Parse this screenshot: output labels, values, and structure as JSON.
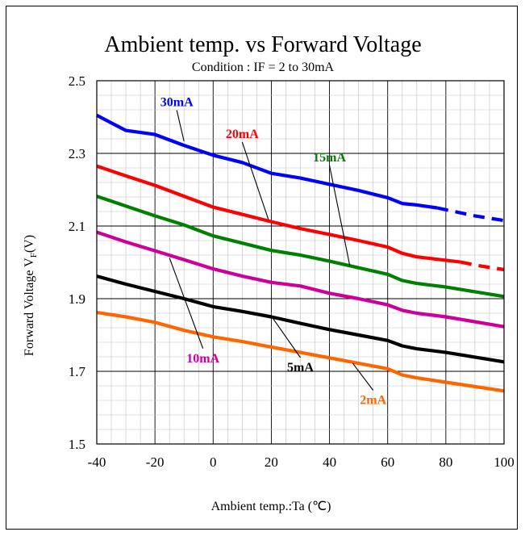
{
  "chart_data": {
    "type": "line",
    "title": "Ambient temp. vs  Forward Voltage",
    "subtitle": "Condition : IF = 2 to 30mA",
    "xlabel": "Ambient temp.:Ta (℃)",
    "ylabel_main": "Forward  Voltage  V",
    "ylabel_sub": "F",
    "ylabel_unit": "(V)",
    "xlim": [
      -40,
      100
    ],
    "ylim": [
      1.5,
      2.5
    ],
    "x_ticks": [
      -40,
      -20,
      0,
      20,
      40,
      60,
      80,
      100
    ],
    "x_tick_labels": [
      "-40",
      "-20",
      "0",
      "20",
      "40",
      "60",
      "80",
      "100"
    ],
    "y_ticks": [
      1.5,
      1.7,
      1.9,
      2.1,
      2.3,
      2.5
    ],
    "y_tick_labels": [
      "1.5",
      "1.7",
      "1.9",
      "2.1",
      "2.3",
      "2.5"
    ],
    "grid": true,
    "series": [
      {
        "name": "30mA",
        "color": "#0000ff",
        "solid": [
          [
            -40,
            2.405
          ],
          [
            -30,
            2.363
          ],
          [
            -20,
            2.352
          ],
          [
            -10,
            2.322
          ],
          [
            0,
            2.295
          ],
          [
            10,
            2.275
          ],
          [
            20,
            2.245
          ],
          [
            30,
            2.232
          ],
          [
            40,
            2.215
          ],
          [
            50,
            2.198
          ],
          [
            60,
            2.178
          ],
          [
            65,
            2.162
          ],
          [
            70,
            2.158
          ],
          [
            77,
            2.15
          ]
        ],
        "dashed": [
          [
            77,
            2.15
          ],
          [
            90,
            2.128
          ],
          [
            100,
            2.115
          ]
        ],
        "label_anchor": [
          -10,
          2.333
        ],
        "label_text_pos": [
          -12.5,
          2.43
        ]
      },
      {
        "name": "20mA",
        "color": "#ff0000",
        "solid": [
          [
            -40,
            2.265
          ],
          [
            -30,
            2.238
          ],
          [
            -20,
            2.212
          ],
          [
            -10,
            2.182
          ],
          [
            0,
            2.152
          ],
          [
            10,
            2.132
          ],
          [
            20,
            2.112
          ],
          [
            30,
            2.093
          ],
          [
            40,
            2.077
          ],
          [
            50,
            2.06
          ],
          [
            60,
            2.042
          ],
          [
            65,
            2.025
          ],
          [
            70,
            2.015
          ],
          [
            85,
            2.001
          ]
        ],
        "dashed": [
          [
            85,
            2.001
          ],
          [
            92,
            1.99
          ],
          [
            100,
            1.98
          ]
        ],
        "label_anchor": [
          19,
          2.118
        ],
        "label_text_pos": [
          10,
          2.342
        ]
      },
      {
        "name": "15mA",
        "color": "#008000",
        "solid": [
          [
            -40,
            2.182
          ],
          [
            -30,
            2.155
          ],
          [
            -20,
            2.128
          ],
          [
            -10,
            2.103
          ],
          [
            0,
            2.073
          ],
          [
            10,
            2.053
          ],
          [
            20,
            2.033
          ],
          [
            30,
            2.02
          ],
          [
            40,
            2.003
          ],
          [
            50,
            1.985
          ],
          [
            60,
            1.967
          ],
          [
            65,
            1.95
          ],
          [
            70,
            1.942
          ],
          [
            80,
            1.932
          ],
          [
            100,
            1.906
          ]
        ],
        "dashed": [],
        "label_anchor": [
          47,
          1.99
        ],
        "label_text_pos": [
          40,
          2.278
        ]
      },
      {
        "name": "10mA",
        "color": "#cc0099",
        "solid": [
          [
            -40,
            2.083
          ],
          [
            -30,
            2.056
          ],
          [
            -20,
            2.032
          ],
          [
            -10,
            2.007
          ],
          [
            0,
            1.982
          ],
          [
            10,
            1.962
          ],
          [
            20,
            1.945
          ],
          [
            30,
            1.935
          ],
          [
            40,
            1.915
          ],
          [
            50,
            1.9
          ],
          [
            60,
            1.883
          ],
          [
            65,
            1.868
          ],
          [
            70,
            1.86
          ],
          [
            80,
            1.85
          ],
          [
            100,
            1.823
          ]
        ],
        "dashed": [],
        "label_anchor": [
          -15,
          2.012
        ],
        "label_text_pos": [
          -3.5,
          1.725
        ]
      },
      {
        "name": "5mA",
        "color": "#000000",
        "solid": [
          [
            -40,
            1.962
          ],
          [
            -30,
            1.94
          ],
          [
            -20,
            1.92
          ],
          [
            -10,
            1.9
          ],
          [
            0,
            1.878
          ],
          [
            10,
            1.865
          ],
          [
            20,
            1.85
          ],
          [
            30,
            1.832
          ],
          [
            40,
            1.815
          ],
          [
            50,
            1.8
          ],
          [
            60,
            1.785
          ],
          [
            65,
            1.77
          ],
          [
            70,
            1.762
          ],
          [
            80,
            1.752
          ],
          [
            100,
            1.726
          ]
        ],
        "dashed": [],
        "label_anchor": [
          20,
          1.852
        ],
        "label_text_pos": [
          30,
          1.7
        ]
      },
      {
        "name": "2mA",
        "color": "#ff6600",
        "solid": [
          [
            -40,
            1.862
          ],
          [
            -30,
            1.85
          ],
          [
            -20,
            1.835
          ],
          [
            -10,
            1.813
          ],
          [
            0,
            1.795
          ],
          [
            10,
            1.782
          ],
          [
            20,
            1.767
          ],
          [
            30,
            1.752
          ],
          [
            40,
            1.737
          ],
          [
            50,
            1.722
          ],
          [
            60,
            1.707
          ],
          [
            65,
            1.69
          ],
          [
            70,
            1.682
          ],
          [
            80,
            1.67
          ],
          [
            100,
            1.646
          ]
        ],
        "dashed": [],
        "label_anchor": [
          48,
          1.722
        ],
        "label_text_pos": [
          55,
          1.61
        ]
      }
    ]
  }
}
